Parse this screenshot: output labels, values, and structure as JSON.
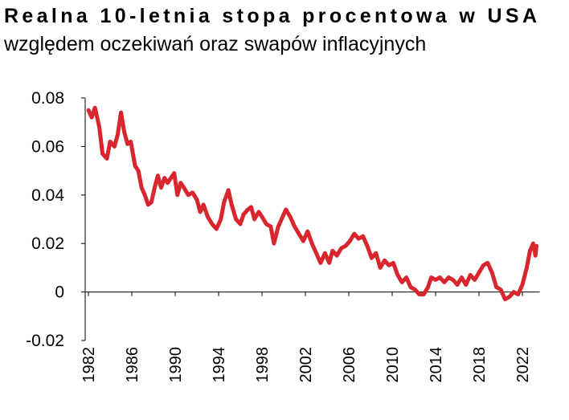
{
  "chart_data": {
    "type": "line",
    "title": "Realna 10-letnia stopa procentowa w USA",
    "subtitle": "względem oczekiwań oraz swapów inflacyjnych",
    "color": "#d9262e",
    "x": [
      1982.0,
      1982.3,
      1982.6,
      1983.0,
      1983.3,
      1983.7,
      1984.0,
      1984.4,
      1984.7,
      1985.0,
      1985.3,
      1985.6,
      1985.9,
      1986.3,
      1986.6,
      1986.9,
      1987.2,
      1987.5,
      1987.8,
      1988.1,
      1988.4,
      1988.7,
      1989.0,
      1989.3,
      1989.6,
      1989.9,
      1990.2,
      1990.5,
      1990.8,
      1991.2,
      1991.6,
      1992.0,
      1992.3,
      1992.6,
      1993.0,
      1993.4,
      1993.8,
      1994.2,
      1994.5,
      1994.9,
      1995.2,
      1995.6,
      1996.0,
      1996.3,
      1996.7,
      1997.0,
      1997.3,
      1997.7,
      1998.0,
      1998.4,
      1998.8,
      1999.1,
      1999.5,
      1999.9,
      2000.2,
      2000.6,
      2001.0,
      2001.4,
      2001.8,
      2002.2,
      2002.6,
      2003.0,
      2003.4,
      2003.8,
      2004.2,
      2004.5,
      2004.9,
      2005.3,
      2005.7,
      2006.1,
      2006.5,
      2006.9,
      2007.3,
      2007.7,
      2008.1,
      2008.5,
      2008.9,
      2009.3,
      2009.7,
      2010.1,
      2010.5,
      2010.9,
      2011.3,
      2011.7,
      2012.1,
      2012.5,
      2012.9,
      2013.3,
      2013.6,
      2014.0,
      2014.4,
      2014.8,
      2015.2,
      2015.6,
      2016.0,
      2016.4,
      2016.8,
      2017.2,
      2017.6,
      2018.0,
      2018.4,
      2018.8,
      2019.2,
      2019.6,
      2020.0,
      2020.4,
      2020.8,
      2021.2,
      2021.6,
      2022.0,
      2022.4,
      2022.7,
      2023.0,
      2023.2,
      2023.3
    ],
    "values": [
      0.075,
      0.072,
      0.076,
      0.068,
      0.057,
      0.055,
      0.062,
      0.06,
      0.065,
      0.074,
      0.066,
      0.061,
      0.062,
      0.052,
      0.05,
      0.043,
      0.04,
      0.036,
      0.037,
      0.043,
      0.048,
      0.043,
      0.047,
      0.045,
      0.047,
      0.049,
      0.04,
      0.045,
      0.043,
      0.04,
      0.041,
      0.038,
      0.033,
      0.036,
      0.031,
      0.028,
      0.026,
      0.03,
      0.037,
      0.042,
      0.036,
      0.03,
      0.028,
      0.032,
      0.034,
      0.035,
      0.03,
      0.033,
      0.031,
      0.028,
      0.027,
      0.02,
      0.027,
      0.031,
      0.034,
      0.031,
      0.027,
      0.024,
      0.021,
      0.025,
      0.02,
      0.016,
      0.012,
      0.016,
      0.012,
      0.017,
      0.015,
      0.018,
      0.019,
      0.021,
      0.024,
      0.022,
      0.023,
      0.019,
      0.014,
      0.016,
      0.01,
      0.013,
      0.011,
      0.012,
      0.007,
      0.004,
      0.006,
      0.002,
      0.001,
      -0.001,
      -0.001,
      0.002,
      0.006,
      0.005,
      0.006,
      0.004,
      0.006,
      0.005,
      0.003,
      0.006,
      0.003,
      0.007,
      0.005,
      0.008,
      0.011,
      0.012,
      0.008,
      0.002,
      0.001,
      -0.003,
      -0.002,
      0.0,
      -0.001,
      0.003,
      0.01,
      0.017,
      0.02,
      0.015,
      0.019
    ],
    "xlim": [
      1981.7,
      2023.6
    ],
    "xticks": [
      1982,
      1986,
      1990,
      1994,
      1998,
      2002,
      2006,
      2010,
      2014,
      2018,
      2022
    ],
    "ylim": [
      -0.02,
      0.08
    ],
    "yticks": [
      -0.02,
      0,
      0.02,
      0.04,
      0.06,
      0.08
    ]
  }
}
